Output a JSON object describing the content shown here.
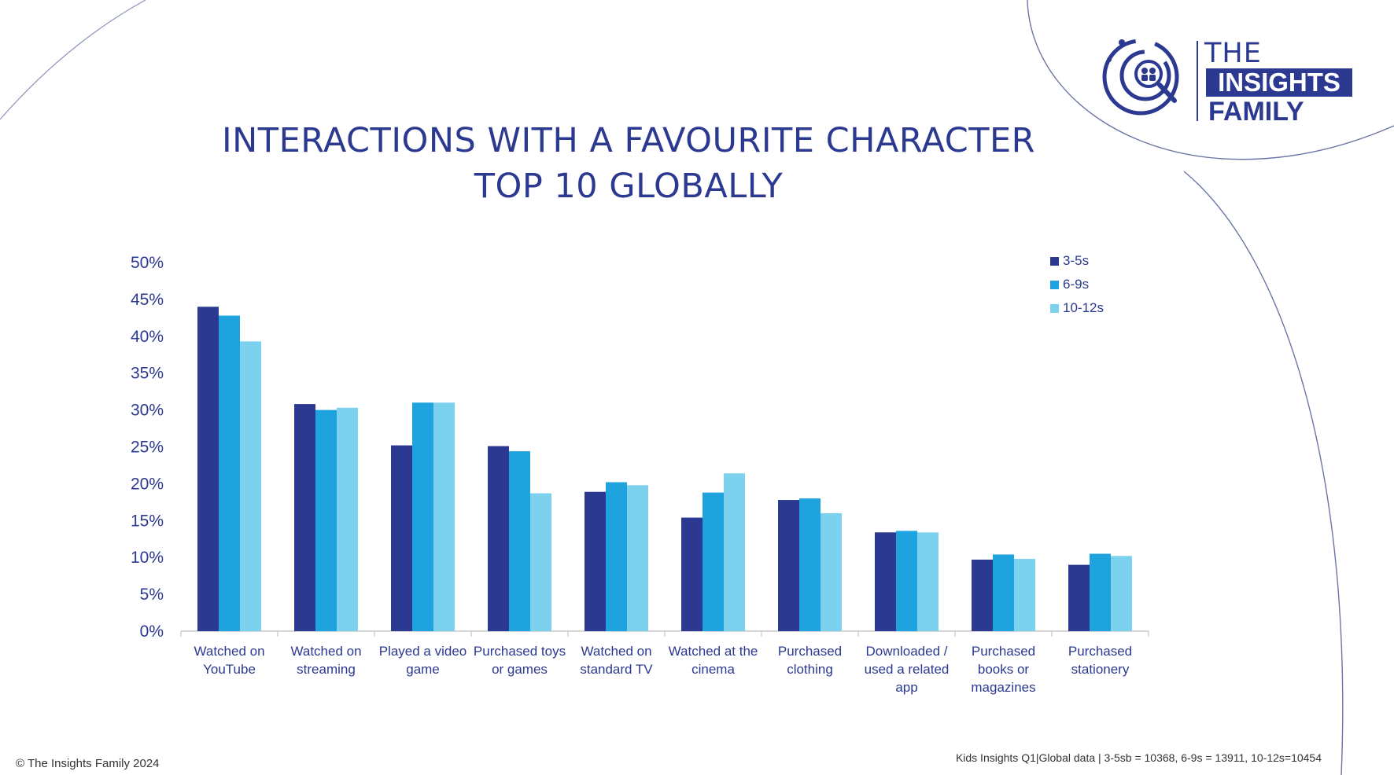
{
  "brand": {
    "logo_the": "THE",
    "logo_insights": "INSIGHTS",
    "logo_family": "FAMILY"
  },
  "colors": {
    "primary": "#2B3990",
    "series": [
      "#2B3990",
      "#1EA3DE",
      "#7BD1EE"
    ]
  },
  "chart_data": {
    "type": "bar",
    "title": "INTERACTIONS WITH A FAVOURITE CHARACTER",
    "subtitle": "TOP 10 GLOBALLY",
    "categories": [
      [
        "Watched on",
        "YouTube"
      ],
      [
        "Watched on",
        "streaming"
      ],
      [
        "Played a video",
        "game"
      ],
      [
        "Purchased toys",
        "or games"
      ],
      [
        "Watched on",
        "standard TV"
      ],
      [
        "Watched at the",
        "cinema"
      ],
      [
        "Purchased",
        "clothing"
      ],
      [
        "Downloaded /",
        "used a related",
        "app"
      ],
      [
        "Purchased",
        "books or",
        "magazines"
      ],
      [
        "Purchased",
        "stationery"
      ]
    ],
    "series": [
      {
        "name": "3-5s",
        "values": [
          44,
          30.8,
          25.2,
          25.1,
          18.9,
          15.4,
          17.8,
          13.4,
          9.7,
          9
        ]
      },
      {
        "name": "6-9s",
        "values": [
          42.8,
          30,
          31,
          24.4,
          20.2,
          18.8,
          18,
          13.6,
          10.4,
          10.5
        ]
      },
      {
        "name": "10-12s",
        "values": [
          39.3,
          30.3,
          31,
          18.7,
          19.8,
          21.4,
          16,
          13.4,
          9.8,
          10.2
        ]
      }
    ],
    "ylim": [
      0,
      50
    ],
    "yticks": [
      "0%",
      "5%",
      "10%",
      "15%",
      "20%",
      "25%",
      "30%",
      "35%",
      "40%",
      "45%",
      "50%"
    ],
    "xlabel": "",
    "ylabel": "",
    "legend_position": "top-right"
  },
  "footer": {
    "copyright": "© The Insights Family 2024",
    "source": "Kids Insights Q1|Global data | 3-5sb = 10368, 6-9s = 13911, 10-12s=10454"
  }
}
